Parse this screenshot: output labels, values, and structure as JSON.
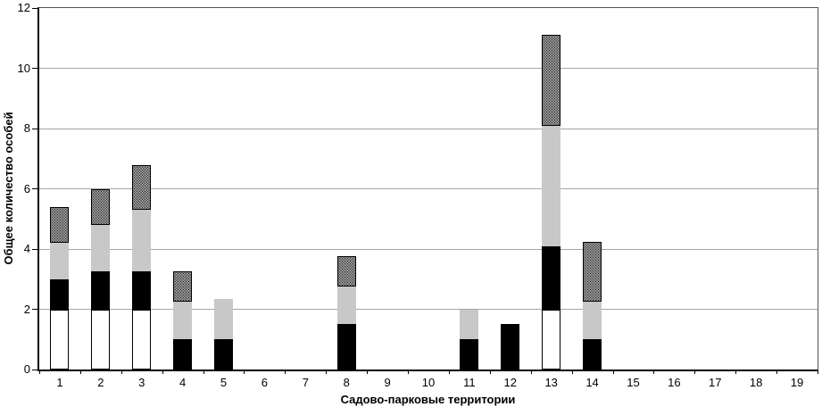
{
  "chart_data": {
    "type": "bar",
    "stacked": true,
    "title": "",
    "xlabel": "Садово-парковые территории",
    "ylabel": "Общее количество особей",
    "categories": [
      "1",
      "2",
      "3",
      "4",
      "5",
      "6",
      "7",
      "8",
      "9",
      "10",
      "11",
      "12",
      "13",
      "14",
      "15",
      "16",
      "17",
      "18",
      "19"
    ],
    "series": [
      {
        "name": "white-segment",
        "fill": "solid-white-outlined",
        "color": "#ffffff",
        "border_color": "#000000",
        "values": [
          2,
          2,
          2,
          0,
          0,
          0,
          0,
          0,
          0,
          0,
          0,
          0,
          2,
          0,
          0,
          0,
          0,
          0,
          0
        ]
      },
      {
        "name": "black-segment",
        "fill": "solid-black",
        "color": "#000000",
        "values": [
          1,
          1.25,
          1.25,
          1,
          1,
          0,
          0,
          1.5,
          0,
          0,
          1,
          1.5,
          2.1,
          1,
          0,
          0,
          0,
          0,
          0
        ]
      },
      {
        "name": "gray-segment",
        "fill": "solid-gray",
        "color": "#c8c8c8",
        "values": [
          1.2,
          1.55,
          2.05,
          1.25,
          1.33,
          0,
          0,
          1.25,
          0,
          0,
          1,
          0,
          4,
          1.25,
          0,
          0,
          0,
          0,
          0
        ]
      },
      {
        "name": "dotted-segment",
        "fill": "stipple-dots",
        "color": "#dcdcdc",
        "dot_color": "#222222",
        "border_color": "#000000",
        "values": [
          1.2,
          1.2,
          1.5,
          1,
          0,
          0,
          0,
          1,
          0,
          0,
          0,
          0,
          3,
          2,
          0,
          0,
          0,
          0,
          0
        ]
      }
    ],
    "ylim": [
      0,
      12
    ],
    "yticks": [
      0,
      2,
      4,
      6,
      8,
      10,
      12
    ],
    "grid": true,
    "legend": false,
    "gridline_color": "#a6a6a6",
    "background": "#ffffff"
  }
}
